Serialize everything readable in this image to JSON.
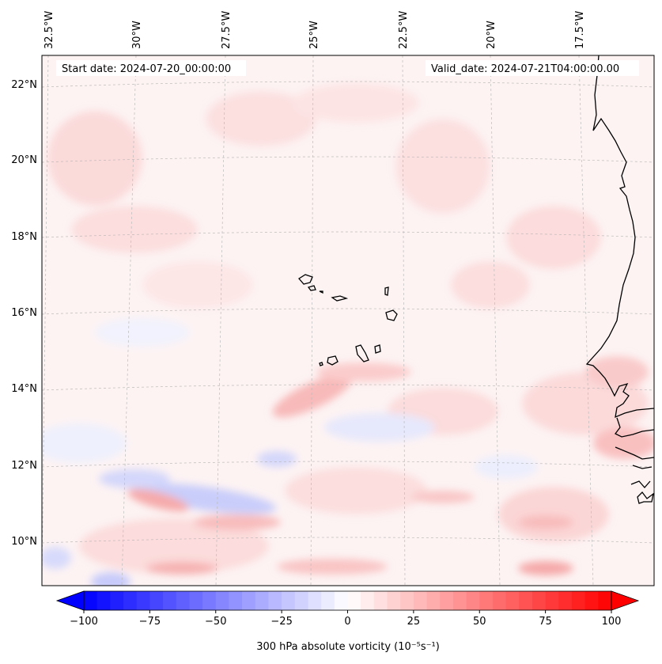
{
  "header": {
    "start_date": "Start date: 2024-07-20_00:00:00",
    "valid_date": "Valid_date: 2024-07-21T04:00:00.00"
  },
  "map": {
    "region": "Eastern tropical Atlantic around Cabo Verde and the West African coast",
    "lon_labels": [
      "32.5°W",
      "30°W",
      "27.5°W",
      "25°W",
      "22.5°W",
      "20°W",
      "17.5°W"
    ],
    "lat_labels": [
      "22°N",
      "20°N",
      "18°N",
      "16°N",
      "14°N",
      "12°N",
      "10°N"
    ],
    "coastline_color": "#000000",
    "gridline_color": "#bbbbbb"
  },
  "colorbar": {
    "label": "300 hPa absolute vorticity (10⁻⁵s⁻¹)",
    "min": -100,
    "max": 100,
    "step": 5,
    "ticks": [
      "−100",
      "−75",
      "−50",
      "−25",
      "0",
      "25",
      "50",
      "75",
      "100"
    ],
    "low_color": "#0000ff",
    "mid_color": "#ffffff",
    "high_color": "#ff0000"
  }
}
